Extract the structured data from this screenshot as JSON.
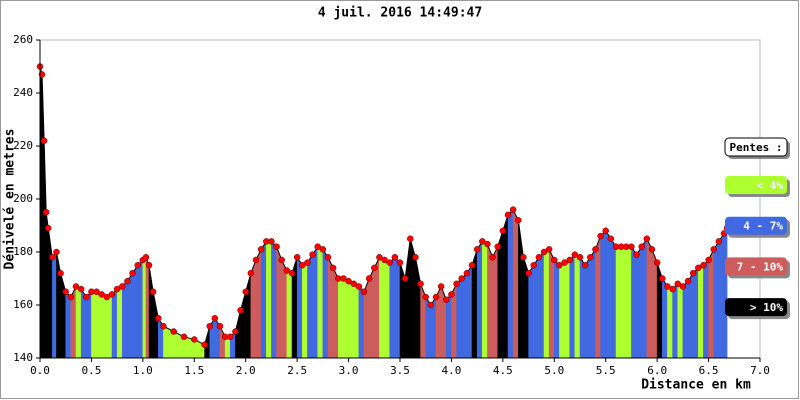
{
  "chart_data": {
    "type": "area",
    "title": "4 juil. 2016 14:49:47",
    "ylabel": "Dénivelé en metres",
    "xlabel": "Distance en km",
    "xlim": [
      0,
      7
    ],
    "ylim": [
      140,
      260
    ],
    "xticks": [
      {
        "value": 0,
        "label": "0.0"
      },
      0.5,
      {
        "value": 1,
        "label": "1.0"
      },
      1.5,
      {
        "value": 2,
        "label": "2.0"
      },
      2.5,
      {
        "value": 3,
        "label": "3.0"
      },
      3.5,
      {
        "value": 4,
        "label": "4.0"
      },
      4.5,
      {
        "value": 5,
        "label": "5.0"
      },
      5.5,
      {
        "value": 6,
        "label": "6.0"
      },
      6.5,
      {
        "value": 7,
        "label": "7.0"
      }
    ],
    "yticks": [
      140,
      160,
      180,
      200,
      220,
      240,
      260
    ],
    "legend": {
      "title": "Pentes :",
      "position": "right",
      "items": [
        {
          "label": "< 4%",
          "color": "#adff2f"
        },
        {
          "label": "4 - 7%",
          "color": "#4169e1"
        },
        {
          "label": "7 - 10%",
          "color": "#cd5c5c"
        },
        {
          "label": "> 10%",
          "color": "#000000"
        }
      ]
    },
    "marker_color": "#ff0000",
    "x": [
      0,
      0.02,
      0.04,
      0.06,
      0.08,
      0.12,
      0.16,
      0.2,
      0.25,
      0.3,
      0.35,
      0.4,
      0.45,
      0.5,
      0.55,
      0.6,
      0.65,
      0.7,
      0.75,
      0.8,
      0.85,
      0.9,
      0.95,
      1.0,
      1.03,
      1.06,
      1.1,
      1.15,
      1.2,
      1.3,
      1.4,
      1.5,
      1.6,
      1.65,
      1.7,
      1.75,
      1.8,
      1.85,
      1.9,
      1.95,
      2.0,
      2.05,
      2.1,
      2.15,
      2.2,
      2.25,
      2.3,
      2.35,
      2.4,
      2.45,
      2.5,
      2.55,
      2.6,
      2.65,
      2.7,
      2.75,
      2.8,
      2.85,
      2.9,
      2.95,
      3.0,
      3.05,
      3.1,
      3.15,
      3.2,
      3.25,
      3.3,
      3.35,
      3.4,
      3.45,
      3.5,
      3.55,
      3.6,
      3.65,
      3.7,
      3.75,
      3.8,
      3.85,
      3.9,
      3.95,
      4.0,
      4.05,
      4.1,
      4.15,
      4.2,
      4.25,
      4.3,
      4.35,
      4.4,
      4.45,
      4.5,
      4.55,
      4.6,
      4.65,
      4.7,
      4.75,
      4.8,
      4.85,
      4.9,
      4.95,
      5.0,
      5.05,
      5.1,
      5.15,
      5.2,
      5.25,
      5.3,
      5.35,
      5.4,
      5.45,
      5.5,
      5.55,
      5.6,
      5.65,
      5.7,
      5.75,
      5.8,
      5.85,
      5.9,
      5.95,
      6.0,
      6.05,
      6.1,
      6.15,
      6.2,
      6.25,
      6.3,
      6.35,
      6.4,
      6.45,
      6.5,
      6.55,
      6.6,
      6.65,
      6.68
    ],
    "values": [
      250,
      247,
      222,
      195,
      189,
      178,
      180,
      172,
      165,
      163,
      167,
      166,
      163,
      165,
      165,
      164,
      163,
      164,
      166,
      167,
      169,
      172,
      175,
      177,
      178,
      175,
      165,
      155,
      152,
      150,
      148,
      147,
      145,
      152,
      155,
      152,
      148,
      148,
      150,
      158,
      165,
      172,
      177,
      181,
      184,
      184,
      182,
      177,
      173,
      172,
      178,
      175,
      176,
      179,
      182,
      181,
      178,
      174,
      170,
      170,
      169,
      168,
      167,
      165,
      170,
      174,
      178,
      177,
      176,
      178,
      176,
      170,
      185,
      178,
      168,
      163,
      160,
      163,
      167,
      162,
      164,
      168,
      170,
      172,
      175,
      181,
      184,
      183,
      178,
      182,
      188,
      194,
      196,
      192,
      178,
      172,
      175,
      178,
      180,
      181,
      177,
      175,
      176,
      177,
      179,
      178,
      175,
      178,
      181,
      186,
      188,
      185,
      182,
      182,
      182,
      182,
      179,
      182,
      185,
      181,
      176,
      170,
      167,
      166,
      168,
      167,
      169,
      172,
      174,
      175,
      177,
      181,
      184,
      187,
      189
    ],
    "colors": [
      "#adff2f",
      "#000000",
      "#000000",
      "#000000",
      "#000000",
      "#000000",
      "#4169e1",
      "#000000",
      "#000000",
      "#4169e1",
      "#cd5c5c",
      "#adff2f",
      "#4169e1",
      "#4169e1",
      "#adff2f",
      "#adff2f",
      "#adff2f",
      "#adff2f",
      "#4169e1",
      "#adff2f",
      "#4169e1",
      "#4169e1",
      "#4169e1",
      "#4169e1",
      "#adff2f",
      "#cd5c5c",
      "#000000",
      "#000000",
      "#4169e1",
      "#adff2f",
      "#adff2f",
      "#adff2f",
      "#adff2f",
      "#000000",
      "#4169e1",
      "#4169e1",
      "#cd5c5c",
      "#adff2f",
      "#4169e1",
      "#000000",
      "#000000",
      "#000000",
      "#cd5c5c",
      "#cd5c5c",
      "#4169e1",
      "#adff2f",
      "#4169e1",
      "#cd5c5c",
      "#cd5c5c",
      "#adff2f",
      "#000000",
      "#4169e1",
      "#adff2f",
      "#4169e1",
      "#4169e1",
      "#adff2f",
      "#4169e1",
      "#cd5c5c",
      "#cd5c5c",
      "#adff2f",
      "#adff2f",
      "#adff2f",
      "#adff2f",
      "#4169e1",
      "#cd5c5c",
      "#cd5c5c",
      "#cd5c5c",
      "#adff2f",
      "#adff2f",
      "#4169e1",
      "#4169e1",
      "#000000",
      "#000000",
      "#000000",
      "#000000",
      "#cd5c5c",
      "#4169e1",
      "#4169e1",
      "#cd5c5c",
      "#cd5c5c",
      "#4169e1",
      "#cd5c5c",
      "#4169e1",
      "#4169e1",
      "#4169e1",
      "#000000",
      "#4169e1",
      "#adff2f",
      "#cd5c5c",
      "#cd5c5c",
      "#000000",
      "#000000",
      "#4169e1",
      "#cd5c5c",
      "#000000",
      "#000000",
      "#4169e1",
      "#4169e1",
      "#4169e1",
      "#adff2f",
      "#cd5c5c",
      "#4169e1",
      "#adff2f",
      "#adff2f",
      "#4169e1",
      "#adff2f",
      "#4169e1",
      "#4169e1",
      "#4169e1",
      "#cd5c5c",
      "#4169e1",
      "#4169e1",
      "#4169e1",
      "#adff2f",
      "#adff2f",
      "#adff2f",
      "#4169e1",
      "#4169e1",
      "#4169e1",
      "#cd5c5c",
      "#cd5c5c",
      "#000000",
      "#4169e1",
      "#adff2f",
      "#4169e1",
      "#adff2f",
      "#4169e1",
      "#4169e1",
      "#4169e1",
      "#adff2f",
      "#4169e1",
      "#cd5c5c",
      "#4169e1",
      "#4169e1",
      "#4169e1"
    ]
  }
}
